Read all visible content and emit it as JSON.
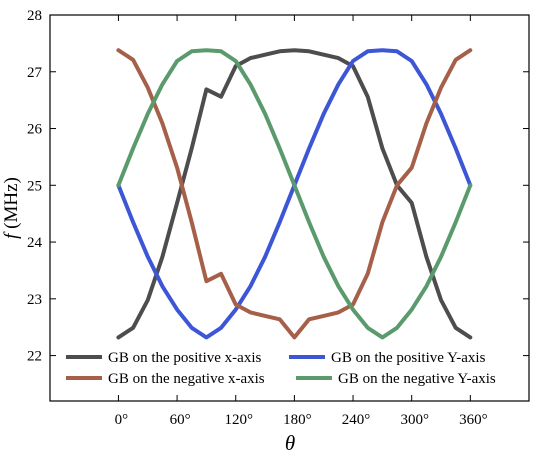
{
  "chart_data": {
    "type": "line",
    "title": "",
    "xlabel": "θ",
    "ylabel_italic": "f",
    "ylabel_rest": " (MHz)",
    "xlim": [
      -70,
      420
    ],
    "ylim": [
      21.2,
      28
    ],
    "x_ticks": [
      {
        "value": 0,
        "label": "0°"
      },
      {
        "value": 60,
        "label": "60°"
      },
      {
        "value": 120,
        "label": "120°"
      },
      {
        "value": 180,
        "label": "180°"
      },
      {
        "value": 240,
        "label": "240°"
      },
      {
        "value": 300,
        "label": "300°"
      },
      {
        "value": 360,
        "label": "360°"
      }
    ],
    "y_ticks": [
      {
        "value": 22,
        "label": "22"
      },
      {
        "value": 23,
        "label": "23"
      },
      {
        "value": 24,
        "label": "24"
      },
      {
        "value": 25,
        "label": "25"
      },
      {
        "value": 26,
        "label": "26"
      },
      {
        "value": 27,
        "label": "27"
      },
      {
        "value": 28,
        "label": "28"
      }
    ],
    "legend_position": "bottom",
    "x": [
      0,
      15,
      30,
      45,
      60,
      75,
      90,
      105,
      120,
      135,
      150,
      165,
      180,
      195,
      210,
      225,
      240,
      255,
      270,
      285,
      300,
      315,
      330,
      345,
      360
    ],
    "series": [
      {
        "name": "GB on the positive x-axis",
        "color": "#4d4d4d",
        "values": [
          22.32,
          22.49,
          22.98,
          23.74,
          24.69,
          25.65,
          26.69,
          26.56,
          27.1,
          27.24,
          27.3,
          27.36,
          27.38,
          27.36,
          27.3,
          27.24,
          27.1,
          26.56,
          25.65,
          25.0,
          24.69,
          23.74,
          22.98,
          22.49,
          22.32
        ]
      },
      {
        "name": "GB on the positive Y-axis",
        "color": "#3c56d6",
        "values": [
          25.0,
          24.35,
          23.74,
          23.22,
          22.81,
          22.49,
          22.32,
          22.49,
          22.81,
          23.22,
          23.74,
          24.35,
          25.0,
          25.65,
          26.26,
          26.78,
          27.19,
          27.36,
          27.38,
          27.36,
          27.19,
          26.78,
          26.26,
          25.65,
          25.0
        ]
      },
      {
        "name": "GB on the negative x-axis",
        "color": "#a6604a",
        "values": [
          27.38,
          27.21,
          26.72,
          26.09,
          25.31,
          24.35,
          23.31,
          23.44,
          22.9,
          22.76,
          22.7,
          22.64,
          22.32,
          22.64,
          22.7,
          22.76,
          22.9,
          23.44,
          24.35,
          25.0,
          25.31,
          26.09,
          26.72,
          27.21,
          27.38
        ]
      },
      {
        "name": "GB on the negative Y-axis",
        "color": "#5a9a6c",
        "values": [
          25.0,
          25.65,
          26.26,
          26.78,
          27.19,
          27.36,
          27.38,
          27.36,
          27.19,
          26.78,
          26.26,
          25.65,
          25.0,
          24.35,
          23.74,
          23.22,
          22.81,
          22.49,
          22.32,
          22.49,
          22.81,
          23.22,
          23.74,
          24.35,
          25.0
        ]
      }
    ]
  }
}
